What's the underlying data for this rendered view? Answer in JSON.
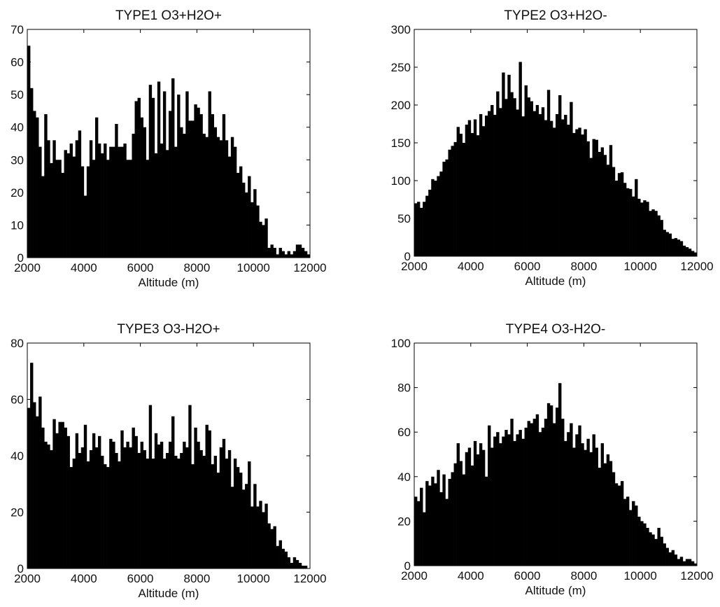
{
  "figure": {
    "bar_color": "#000000",
    "axis_color": "#000000",
    "background": "#ffffff"
  },
  "chart_data": [
    {
      "type": "bar",
      "title": "TYPE1  O3+H2O+",
      "xlabel": "Altitude (m)",
      "ylabel": "",
      "xlim": [
        2000,
        12000
      ],
      "ylim": [
        0,
        70
      ],
      "xticks": [
        "2000",
        "4000",
        "6000",
        "8000",
        "10000",
        "12000"
      ],
      "yticks": [
        "0",
        "10",
        "20",
        "30",
        "40",
        "50",
        "60",
        "70"
      ],
      "bin_start": 2000,
      "bin_width": 100,
      "values": [
        65,
        52,
        45,
        43,
        34,
        25,
        44,
        36,
        29,
        36,
        30,
        30,
        26,
        33,
        32,
        35,
        31,
        36,
        39,
        28,
        19,
        28,
        36,
        30,
        43,
        35,
        32,
        35,
        30,
        34,
        34,
        41,
        34,
        34,
        35,
        30,
        30,
        38,
        48,
        49,
        43,
        40,
        30,
        53,
        49,
        32,
        54,
        35,
        51,
        33,
        45,
        55,
        34,
        50,
        40,
        38,
        51,
        42,
        42,
        47,
        46,
        44,
        38,
        37,
        51,
        44,
        40,
        37,
        36,
        44,
        36,
        31,
        37,
        34,
        26,
        28,
        23,
        20,
        25,
        17,
        21,
        16,
        11,
        10,
        12,
        3,
        4,
        3,
        1,
        3,
        2,
        1,
        2,
        1,
        2,
        4,
        4,
        3,
        2,
        1
      ]
    },
    {
      "type": "bar",
      "title": "TYPE2  O3+H2O-",
      "xlabel": "Altitude (m)",
      "ylabel": "",
      "xlim": [
        2000,
        12000
      ],
      "ylim": [
        0,
        300
      ],
      "xticks": [
        "2000",
        "4000",
        "6000",
        "8000",
        "10000",
        "12000"
      ],
      "yticks": [
        "0",
        "50",
        "100",
        "150",
        "200",
        "250",
        "300"
      ],
      "bin_start": 2000,
      "bin_width": 100,
      "values": [
        70,
        72,
        64,
        72,
        80,
        88,
        102,
        100,
        106,
        112,
        125,
        128,
        141,
        146,
        151,
        171,
        162,
        150,
        174,
        180,
        163,
        181,
        160,
        188,
        172,
        186,
        192,
        200,
        187,
        218,
        196,
        243,
        208,
        240,
        217,
        209,
        194,
        257,
        185,
        226,
        210,
        205,
        192,
        200,
        188,
        197,
        180,
        220,
        179,
        170,
        188,
        213,
        181,
        187,
        174,
        204,
        163,
        168,
        170,
        161,
        168,
        152,
        130,
        155,
        154,
        138,
        144,
        134,
        121,
        147,
        118,
        100,
        110,
        111,
        97,
        90,
        89,
        79,
        102,
        76,
        71,
        74,
        72,
        60,
        62,
        60,
        54,
        48,
        35,
        32,
        30,
        23,
        24,
        22,
        20,
        14,
        12,
        10,
        7,
        5
      ]
    },
    {
      "type": "bar",
      "title": "TYPE3  O3-H2O+",
      "xlabel": "Altitude (m)",
      "ylabel": "",
      "xlim": [
        2000,
        12000
      ],
      "ylim": [
        0,
        80
      ],
      "xticks": [
        "2000",
        "4000",
        "6000",
        "8000",
        "10000",
        "12000"
      ],
      "yticks": [
        "0",
        "20",
        "40",
        "60",
        "80"
      ],
      "bin_start": 2000,
      "bin_width": 100,
      "values": [
        57,
        73,
        59,
        54,
        61,
        50,
        45,
        44,
        42,
        53,
        48,
        52,
        52,
        50,
        47,
        36,
        39,
        48,
        41,
        43,
        51,
        38,
        42,
        48,
        43,
        47,
        40,
        37,
        36,
        46,
        45,
        41,
        38,
        49,
        43,
        45,
        43,
        50,
        47,
        41,
        45,
        42,
        39,
        58,
        39,
        48,
        44,
        45,
        39,
        41,
        45,
        54,
        40,
        39,
        41,
        45,
        43,
        58,
        37,
        50,
        45,
        42,
        40,
        51,
        49,
        37,
        40,
        34,
        43,
        46,
        39,
        42,
        29,
        39,
        36,
        34,
        28,
        30,
        38,
        22,
        30,
        22,
        24,
        20,
        23,
        16,
        14,
        15,
        8,
        10,
        7,
        6,
        4,
        2,
        4,
        3,
        2,
        1,
        1,
        0
      ]
    },
    {
      "type": "bar",
      "title": "TYPE4  O3-H2O-",
      "xlabel": "Altitude (m)",
      "ylabel": "",
      "xlim": [
        2000,
        12000
      ],
      "ylim": [
        0,
        100
      ],
      "xticks": [
        "2000",
        "4000",
        "6000",
        "8000",
        "10000",
        "12000"
      ],
      "yticks": [
        "0",
        "20",
        "40",
        "60",
        "80",
        "100"
      ],
      "bin_start": 2000,
      "bin_width": 100,
      "values": [
        31,
        29,
        35,
        24,
        38,
        36,
        40,
        37,
        43,
        33,
        41,
        30,
        39,
        42,
        46,
        55,
        47,
        41,
        51,
        53,
        45,
        56,
        50,
        55,
        52,
        40,
        63,
        53,
        58,
        60,
        55,
        58,
        61,
        59,
        66,
        56,
        59,
        61,
        57,
        62,
        65,
        64,
        66,
        68,
        60,
        62,
        66,
        73,
        72,
        64,
        71,
        82,
        66,
        56,
        60,
        64,
        53,
        59,
        63,
        55,
        52,
        57,
        51,
        59,
        53,
        44,
        55,
        46,
        50,
        47,
        42,
        37,
        36,
        38,
        30,
        31,
        25,
        29,
        27,
        22,
        20,
        19,
        17,
        15,
        14,
        12,
        17,
        13,
        10,
        8,
        6,
        7,
        5,
        3,
        4,
        2,
        3,
        3,
        2,
        1
      ]
    }
  ]
}
